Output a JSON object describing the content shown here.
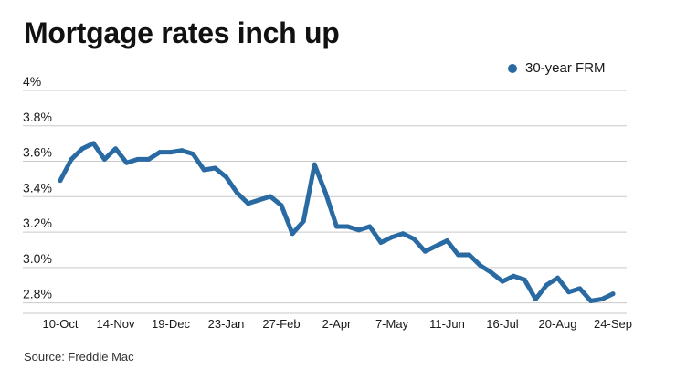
{
  "title": "Mortgage rates inch up",
  "source": "Source: Freddie Mac",
  "colors": {
    "series": "#2a6aa3",
    "grid": "#c9c9c9",
    "text": "#1a1a1a"
  },
  "chart_data": {
    "type": "line",
    "title": "Mortgage rates inch up",
    "xlabel": "",
    "ylabel": "",
    "ylim": [
      2.7,
      4.0
    ],
    "y_ticks": [
      2.8,
      3.0,
      3.2,
      3.4,
      3.6,
      3.8,
      4.0
    ],
    "y_tick_labels": [
      "2.8%",
      "3.0%",
      "3.2%",
      "3.4%",
      "3.6%",
      "3.8%",
      "4%"
    ],
    "x_tick_labels": [
      "10-Oct",
      "14-Nov",
      "19-Dec",
      "23-Jan",
      "27-Feb",
      "2-Apr",
      "7-May",
      "11-Jun",
      "16-Jul",
      "20-Aug",
      "24-Sep"
    ],
    "x_tick_index": [
      0,
      5,
      10,
      15,
      20,
      25,
      30,
      35,
      40,
      45,
      50
    ],
    "legend": "top-right",
    "grid": true,
    "series": [
      {
        "name": "30-year FRM",
        "values": [
          3.45,
          3.57,
          3.63,
          3.66,
          3.57,
          3.63,
          3.55,
          3.57,
          3.57,
          3.61,
          3.61,
          3.62,
          3.6,
          3.51,
          3.52,
          3.47,
          3.38,
          3.32,
          3.34,
          3.36,
          3.31,
          3.15,
          3.22,
          3.54,
          3.38,
          3.19,
          3.19,
          3.17,
          3.19,
          3.1,
          3.13,
          3.15,
          3.12,
          3.05,
          3.08,
          3.11,
          3.03,
          3.03,
          2.97,
          2.93,
          2.88,
          2.91,
          2.89,
          2.78,
          2.86,
          2.9,
          2.82,
          2.84,
          2.77,
          2.78,
          2.81
        ]
      }
    ]
  }
}
